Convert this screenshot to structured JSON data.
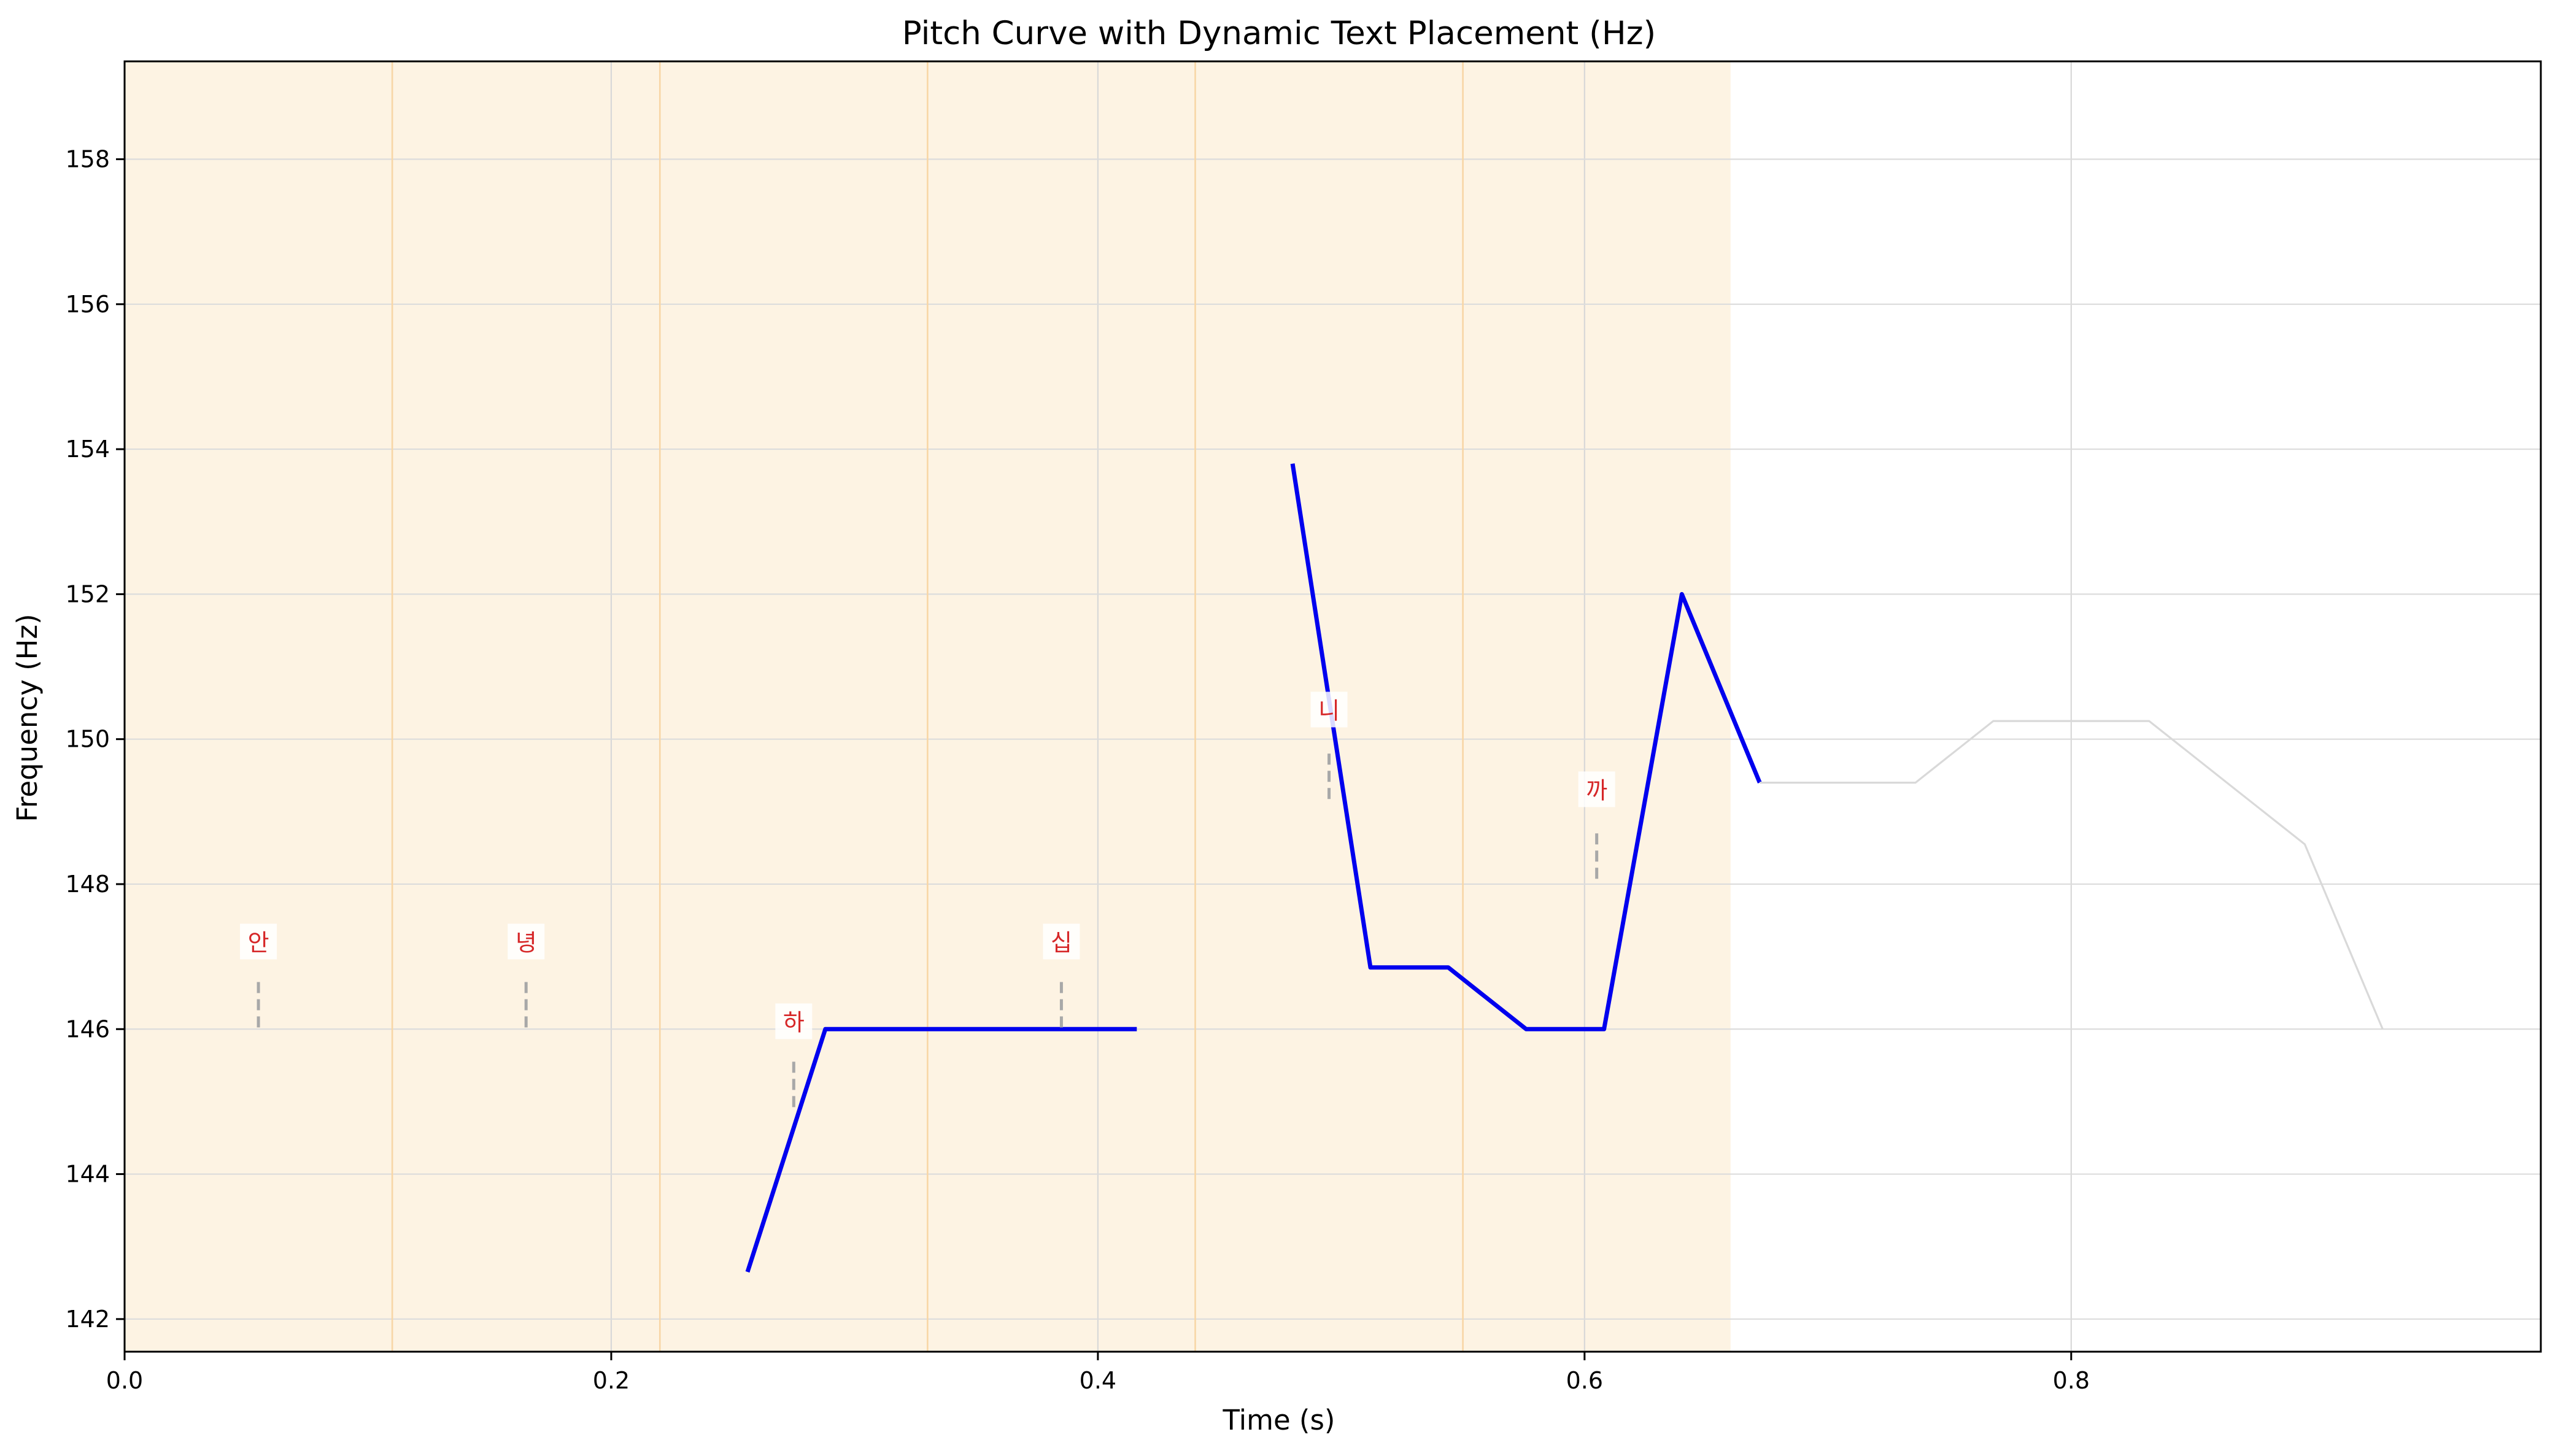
{
  "chart_data": {
    "type": "line",
    "title": "Pitch Curve with Dynamic Text Placement (Hz)",
    "xlabel": "Time (s)",
    "ylabel": "Frequency (Hz)",
    "xlim": [
      0.0,
      0.993
    ],
    "ylim": [
      141.55,
      159.35
    ],
    "xticks": [
      0.0,
      0.2,
      0.4,
      0.6,
      0.8
    ],
    "xtick_labels": [
      "0.0",
      "0.2",
      "0.4",
      "0.6",
      "0.8"
    ],
    "yticks": [
      142,
      144,
      146,
      148,
      150,
      152,
      154,
      156,
      158
    ],
    "ytick_labels": [
      "142",
      "144",
      "146",
      "148",
      "150",
      "152",
      "154",
      "156",
      "158"
    ],
    "grid": true,
    "highlight_region": {
      "x_start": 0.0,
      "x_end": 0.66,
      "color": "#fdf3e3"
    },
    "syllable_boundaries": [
      0.11,
      0.22,
      0.33,
      0.44,
      0.55
    ],
    "series": [
      {
        "color": "#0000ee",
        "segments": [
          {
            "x": [
              0.256,
              0.288,
              0.32,
              0.352,
              0.384,
              0.416
            ],
            "y": [
              142.65,
              146.0,
              146.0,
              146.0,
              146.0,
              146.0
            ]
          },
          {
            "x": [
              0.48,
              0.512,
              0.544,
              0.576,
              0.608,
              0.64,
              0.672
            ],
            "y": [
              153.8,
              146.85,
              146.85,
              146.0,
              146.0,
              152.0,
              149.4
            ]
          }
        ]
      },
      {
        "color": "#d9d9d9",
        "segments": [
          {
            "x": [
              0.672,
              0.704,
              0.736,
              0.768,
              0.8,
              0.832,
              0.864,
              0.896,
              0.928
            ],
            "y": [
              149.4,
              149.4,
              149.4,
              150.25,
              150.25,
              150.25,
              149.4,
              148.55,
              146.0
            ]
          }
        ]
      }
    ],
    "annotations": [
      {
        "text": "안",
        "x": 0.055,
        "y_text": 147.2,
        "y_line_top": 146.65,
        "y_line_bottom": 146.0
      },
      {
        "text": "녕",
        "x": 0.165,
        "y_text": 147.2,
        "y_line_top": 146.65,
        "y_line_bottom": 146.0
      },
      {
        "text": "하",
        "x": 0.275,
        "y_text": 146.1,
        "y_line_top": 145.55,
        "y_line_bottom": 144.85
      },
      {
        "text": "십",
        "x": 0.385,
        "y_text": 147.2,
        "y_line_top": 146.65,
        "y_line_bottom": 146.0
      },
      {
        "text": "니",
        "x": 0.495,
        "y_text": 150.4,
        "y_line_top": 149.8,
        "y_line_bottom": 149.15
      },
      {
        "text": "까",
        "x": 0.605,
        "y_text": 149.3,
        "y_line_top": 148.7,
        "y_line_bottom": 148.0
      }
    ],
    "annotation_color": "#d62728"
  }
}
